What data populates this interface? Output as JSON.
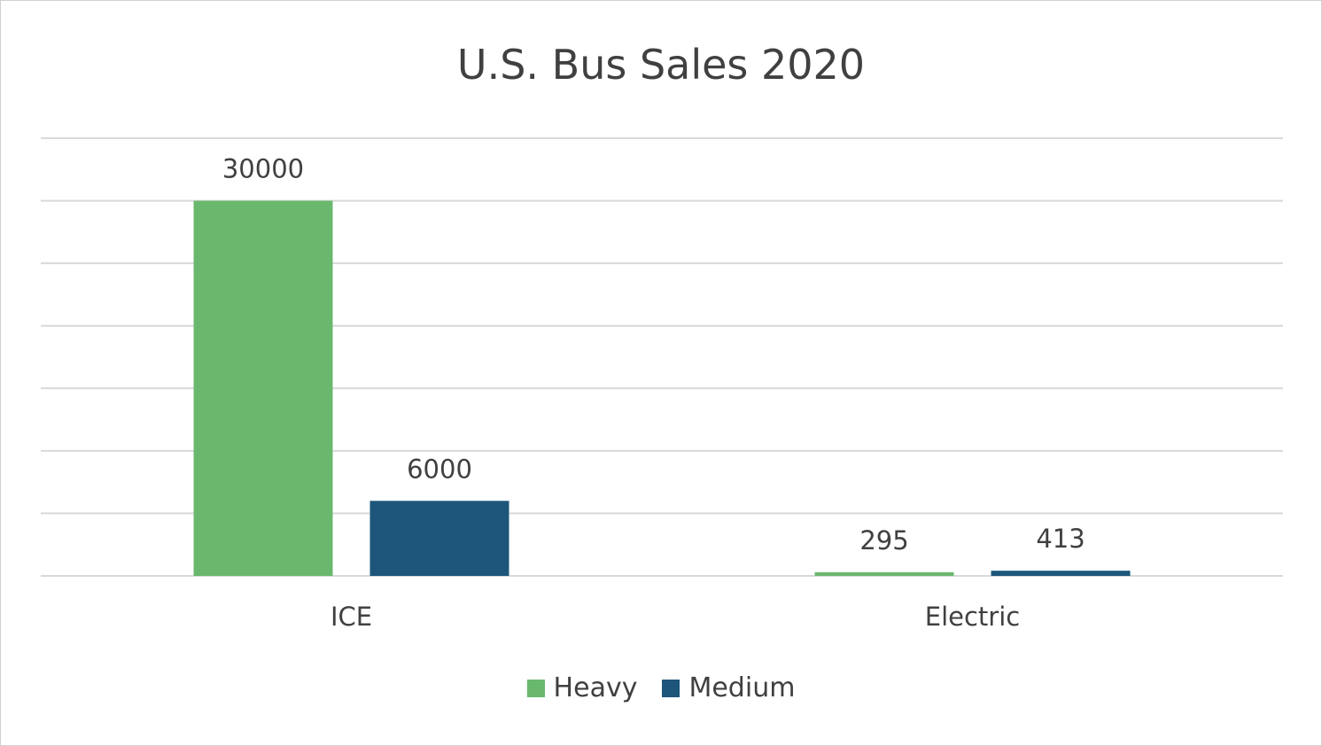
{
  "chart_data": {
    "type": "bar",
    "title": "U.S. Bus Sales 2020",
    "categories": [
      "ICE",
      "Electric"
    ],
    "series": [
      {
        "name": "Heavy",
        "color": "#6ab86e",
        "values": [
          30000,
          295
        ]
      },
      {
        "name": "Medium",
        "color": "#1d567a",
        "values": [
          6000,
          413
        ]
      }
    ],
    "xlabel": "",
    "ylabel": "",
    "ylim": [
      0,
      35000
    ],
    "grid": true,
    "legend_position": "bottom",
    "data_labels": true
  }
}
